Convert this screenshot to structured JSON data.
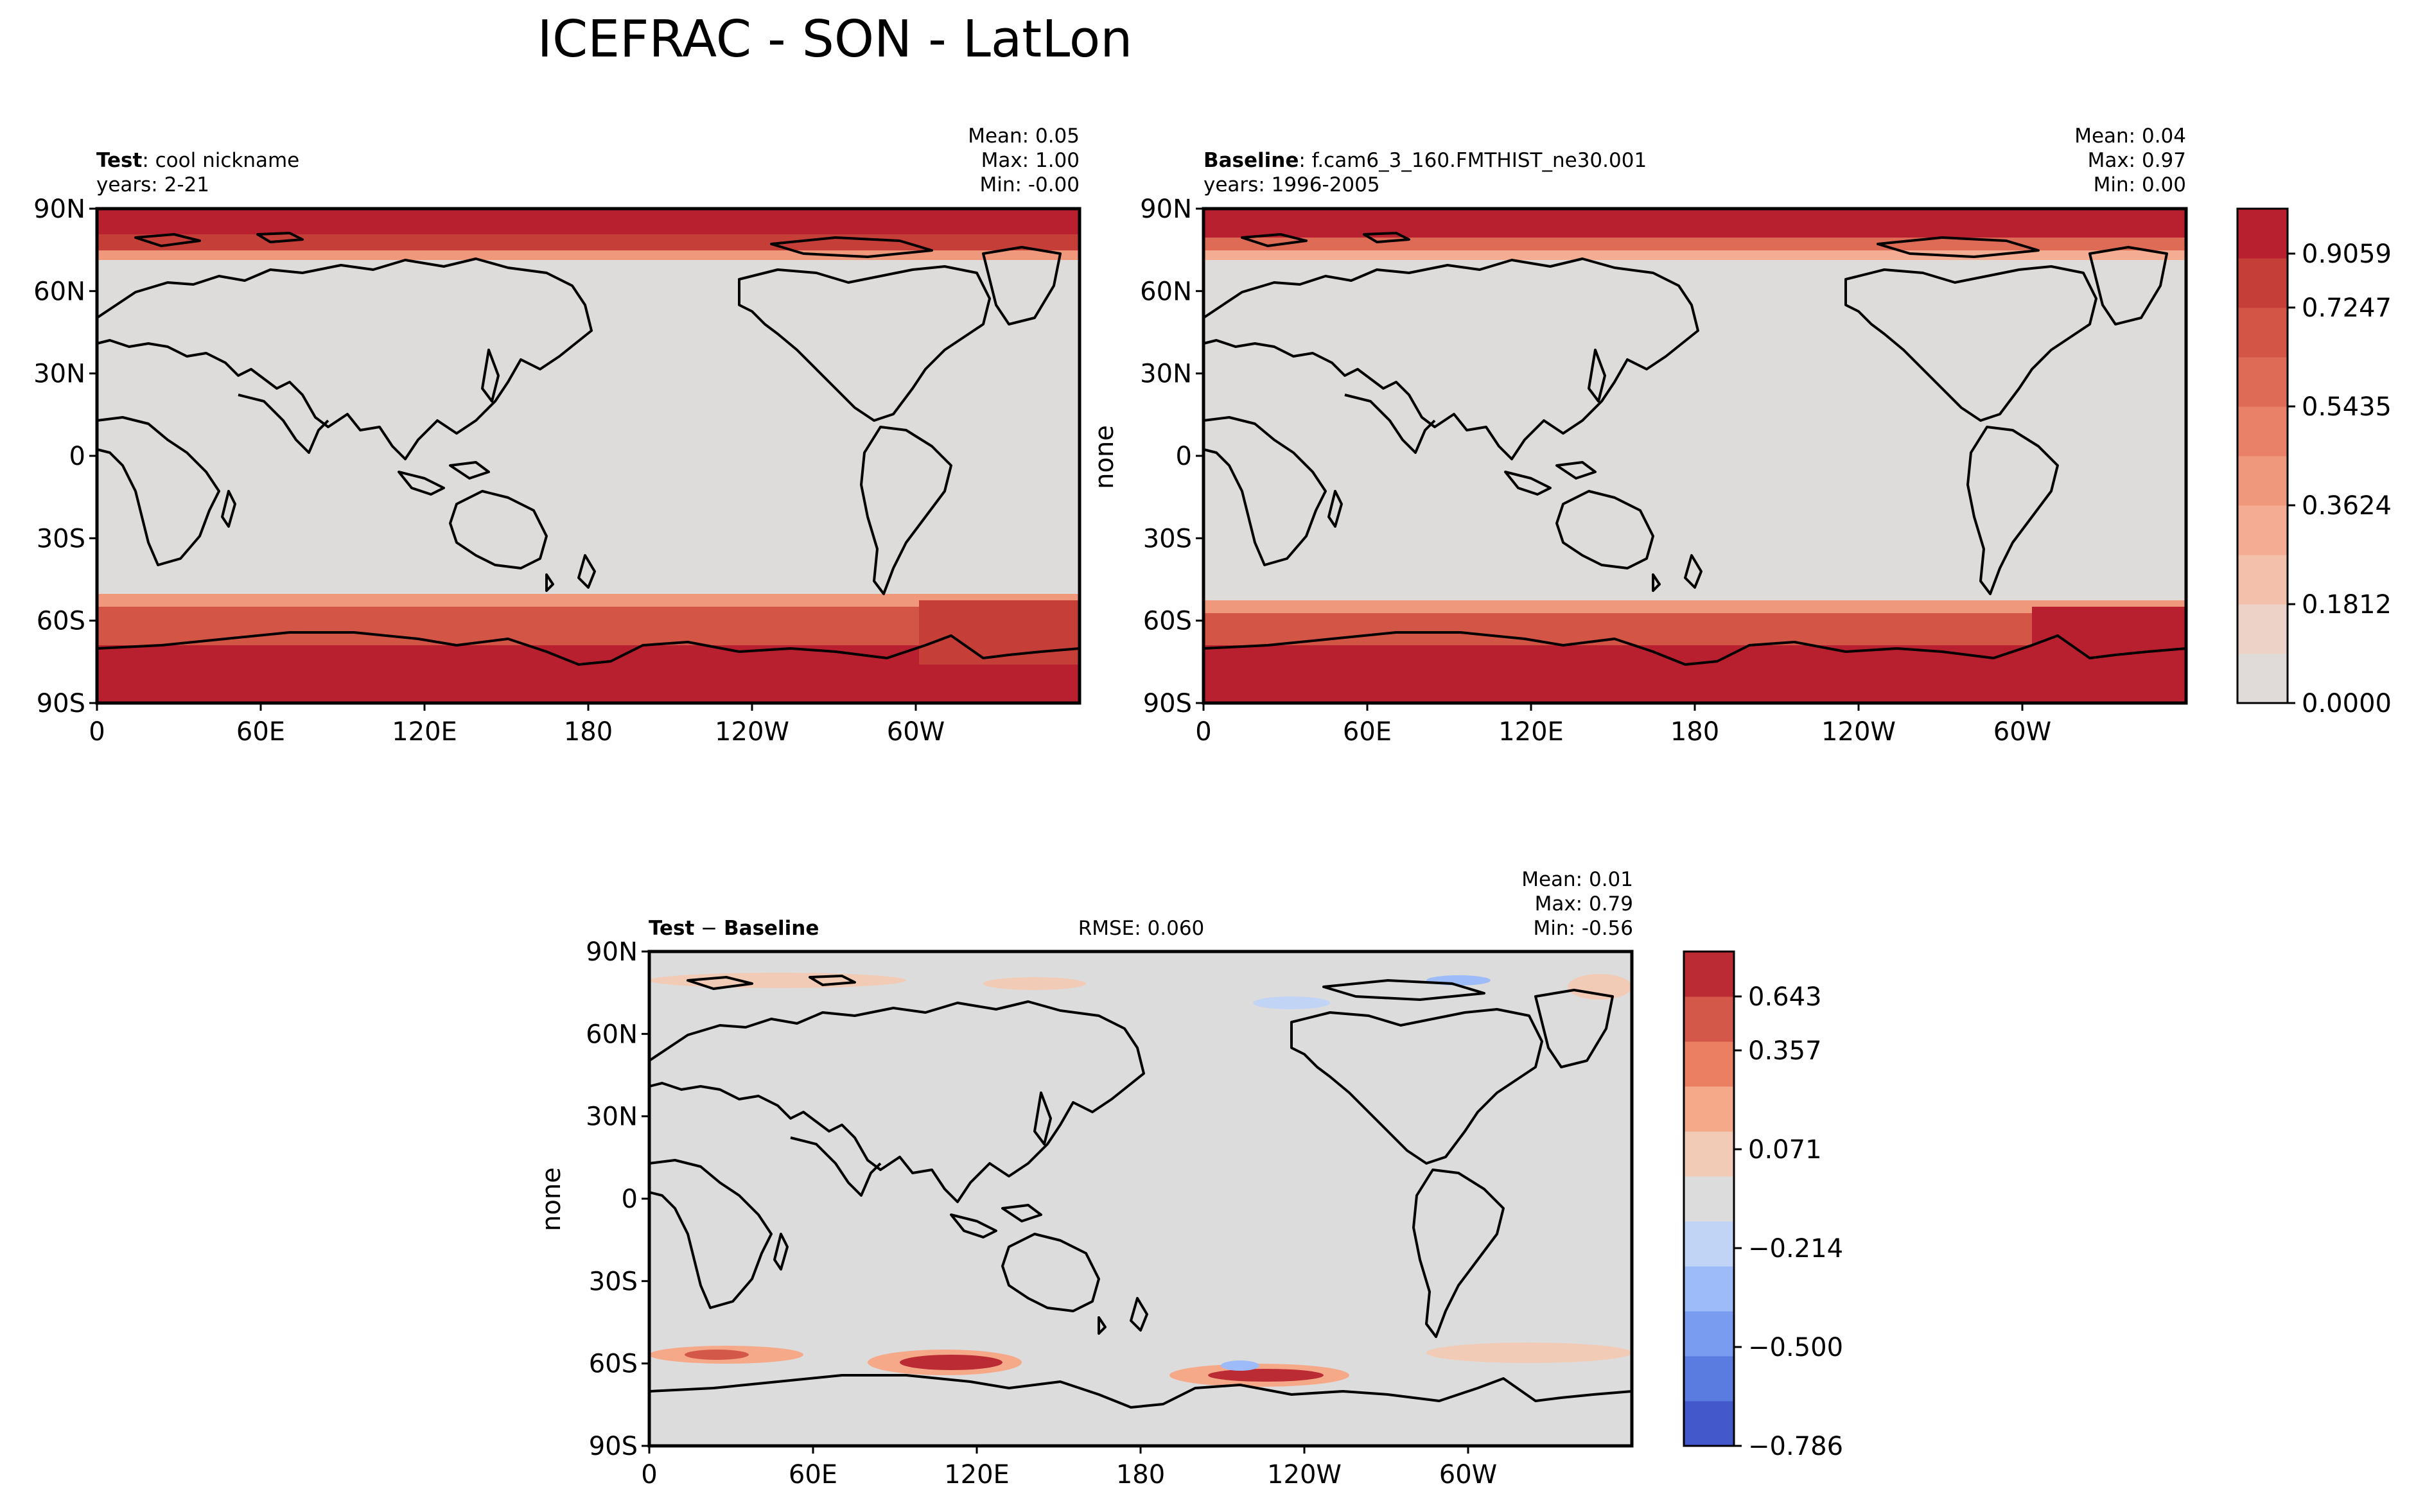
{
  "figure": {
    "title": "ICEFRAC - SON - LatLon"
  },
  "panels": {
    "test": {
      "label_bold": "Test",
      "label_rest": ": cool nickname",
      "years": "years: 2-21",
      "mean": "Mean:  0.05",
      "max": "Max:  1.00",
      "min": "Min: -0.00",
      "ylabel": ""
    },
    "baseline": {
      "label_bold": "Baseline",
      "label_rest": ": f.cam6_3_160.FMTHIST_ne30.001",
      "years": "years: 1996-2005",
      "mean": "Mean:  0.04",
      "max": "Max:  0.97",
      "min": "Min:  0.00",
      "ylabel": "none"
    },
    "diff": {
      "label_test": "Test",
      "label_minus": " − ",
      "label_base": "Baseline",
      "rmse": "RMSE: 0.060",
      "mean": "Mean:  0.01",
      "max": "Max:  0.79",
      "min": "Min: -0.56",
      "ylabel": "none"
    }
  },
  "axes": {
    "lat_ticks": [
      "90N",
      "60N",
      "30N",
      "0",
      "30S",
      "60S",
      "90S"
    ],
    "lon_ticks": [
      "0",
      "60E",
      "120E",
      "180",
      "120W",
      "60W"
    ]
  },
  "colorbars": {
    "main": {
      "labels": [
        "0.9059",
        "0.7247",
        "0.5435",
        "0.3624",
        "0.1812",
        "0.0000"
      ],
      "colors": [
        "#e0dbd8",
        "#edd3c7",
        "#f3c1ab",
        "#f4ad92",
        "#f0987b",
        "#e88168",
        "#de6b56",
        "#d25545",
        "#c53e38",
        "#b8202f"
      ]
    },
    "diff": {
      "labels": [
        "0.643",
        "0.357",
        "0.071",
        "−0.214",
        "−0.500",
        "−0.786"
      ],
      "colors": [
        "#4358cb",
        "#5a7bdf",
        "#7a9cf0",
        "#9dbbf9",
        "#c2d4f5",
        "#dcdcdc",
        "#f2cbb7",
        "#f6a989",
        "#eb7f62",
        "#d4584a",
        "#bb2b34"
      ]
    }
  },
  "colors": {
    "land_bg": "#dedcda",
    "diff_bg": "#dcdcdc",
    "ice_high": "#b8202f",
    "ice_mid": "#de6b56",
    "ice_low": "#f3c1ab"
  },
  "chart_data": {
    "type": "heatmap",
    "variable": "ICEFRAC",
    "season": "SON",
    "projection": "LatLon",
    "lon_range": [
      0,
      360
    ],
    "lat_range": [
      -90,
      90
    ],
    "panels": [
      {
        "name": "Test",
        "mean": 0.05,
        "max": 1.0,
        "min": -0.0
      },
      {
        "name": "Baseline",
        "mean": 0.04,
        "max": 0.97,
        "min": 0.0
      },
      {
        "name": "Test - Baseline",
        "mean": 0.01,
        "max": 0.79,
        "min": -0.56,
        "rmse": 0.06
      }
    ],
    "colorbar_main_levels": [
      0.0,
      0.1812,
      0.3624,
      0.5435,
      0.7247,
      0.9059
    ],
    "colorbar_diff_levels": [
      -0.786,
      -0.5,
      -0.214,
      0.071,
      0.357,
      0.643
    ]
  }
}
